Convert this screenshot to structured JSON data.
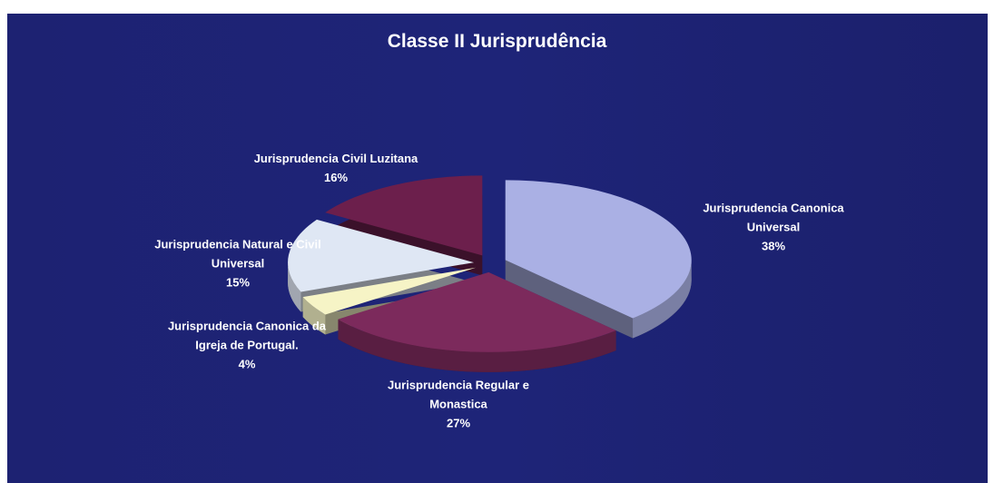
{
  "chart_data": {
    "type": "pie",
    "title": "Classe II Jurisprudência",
    "categories": [
      "Jurisprudencia Canonica Universal",
      "Jurisprudencia Regular e Monastica",
      "Jurisprudencia Canonica da Igreja de Portugal.",
      "Jurisprudencia Natural e Civil Universal",
      "Jurisprudencia Civil Luzitana"
    ],
    "values": [
      38,
      27,
      4,
      15,
      16
    ],
    "value_labels": [
      "38%",
      "27%",
      "4%",
      "15%",
      "16%"
    ],
    "colors": [
      "#aab0e4",
      "#7c2a5c",
      "#f6f4c6",
      "#dfe7f4",
      "#6c1f4c"
    ]
  }
}
